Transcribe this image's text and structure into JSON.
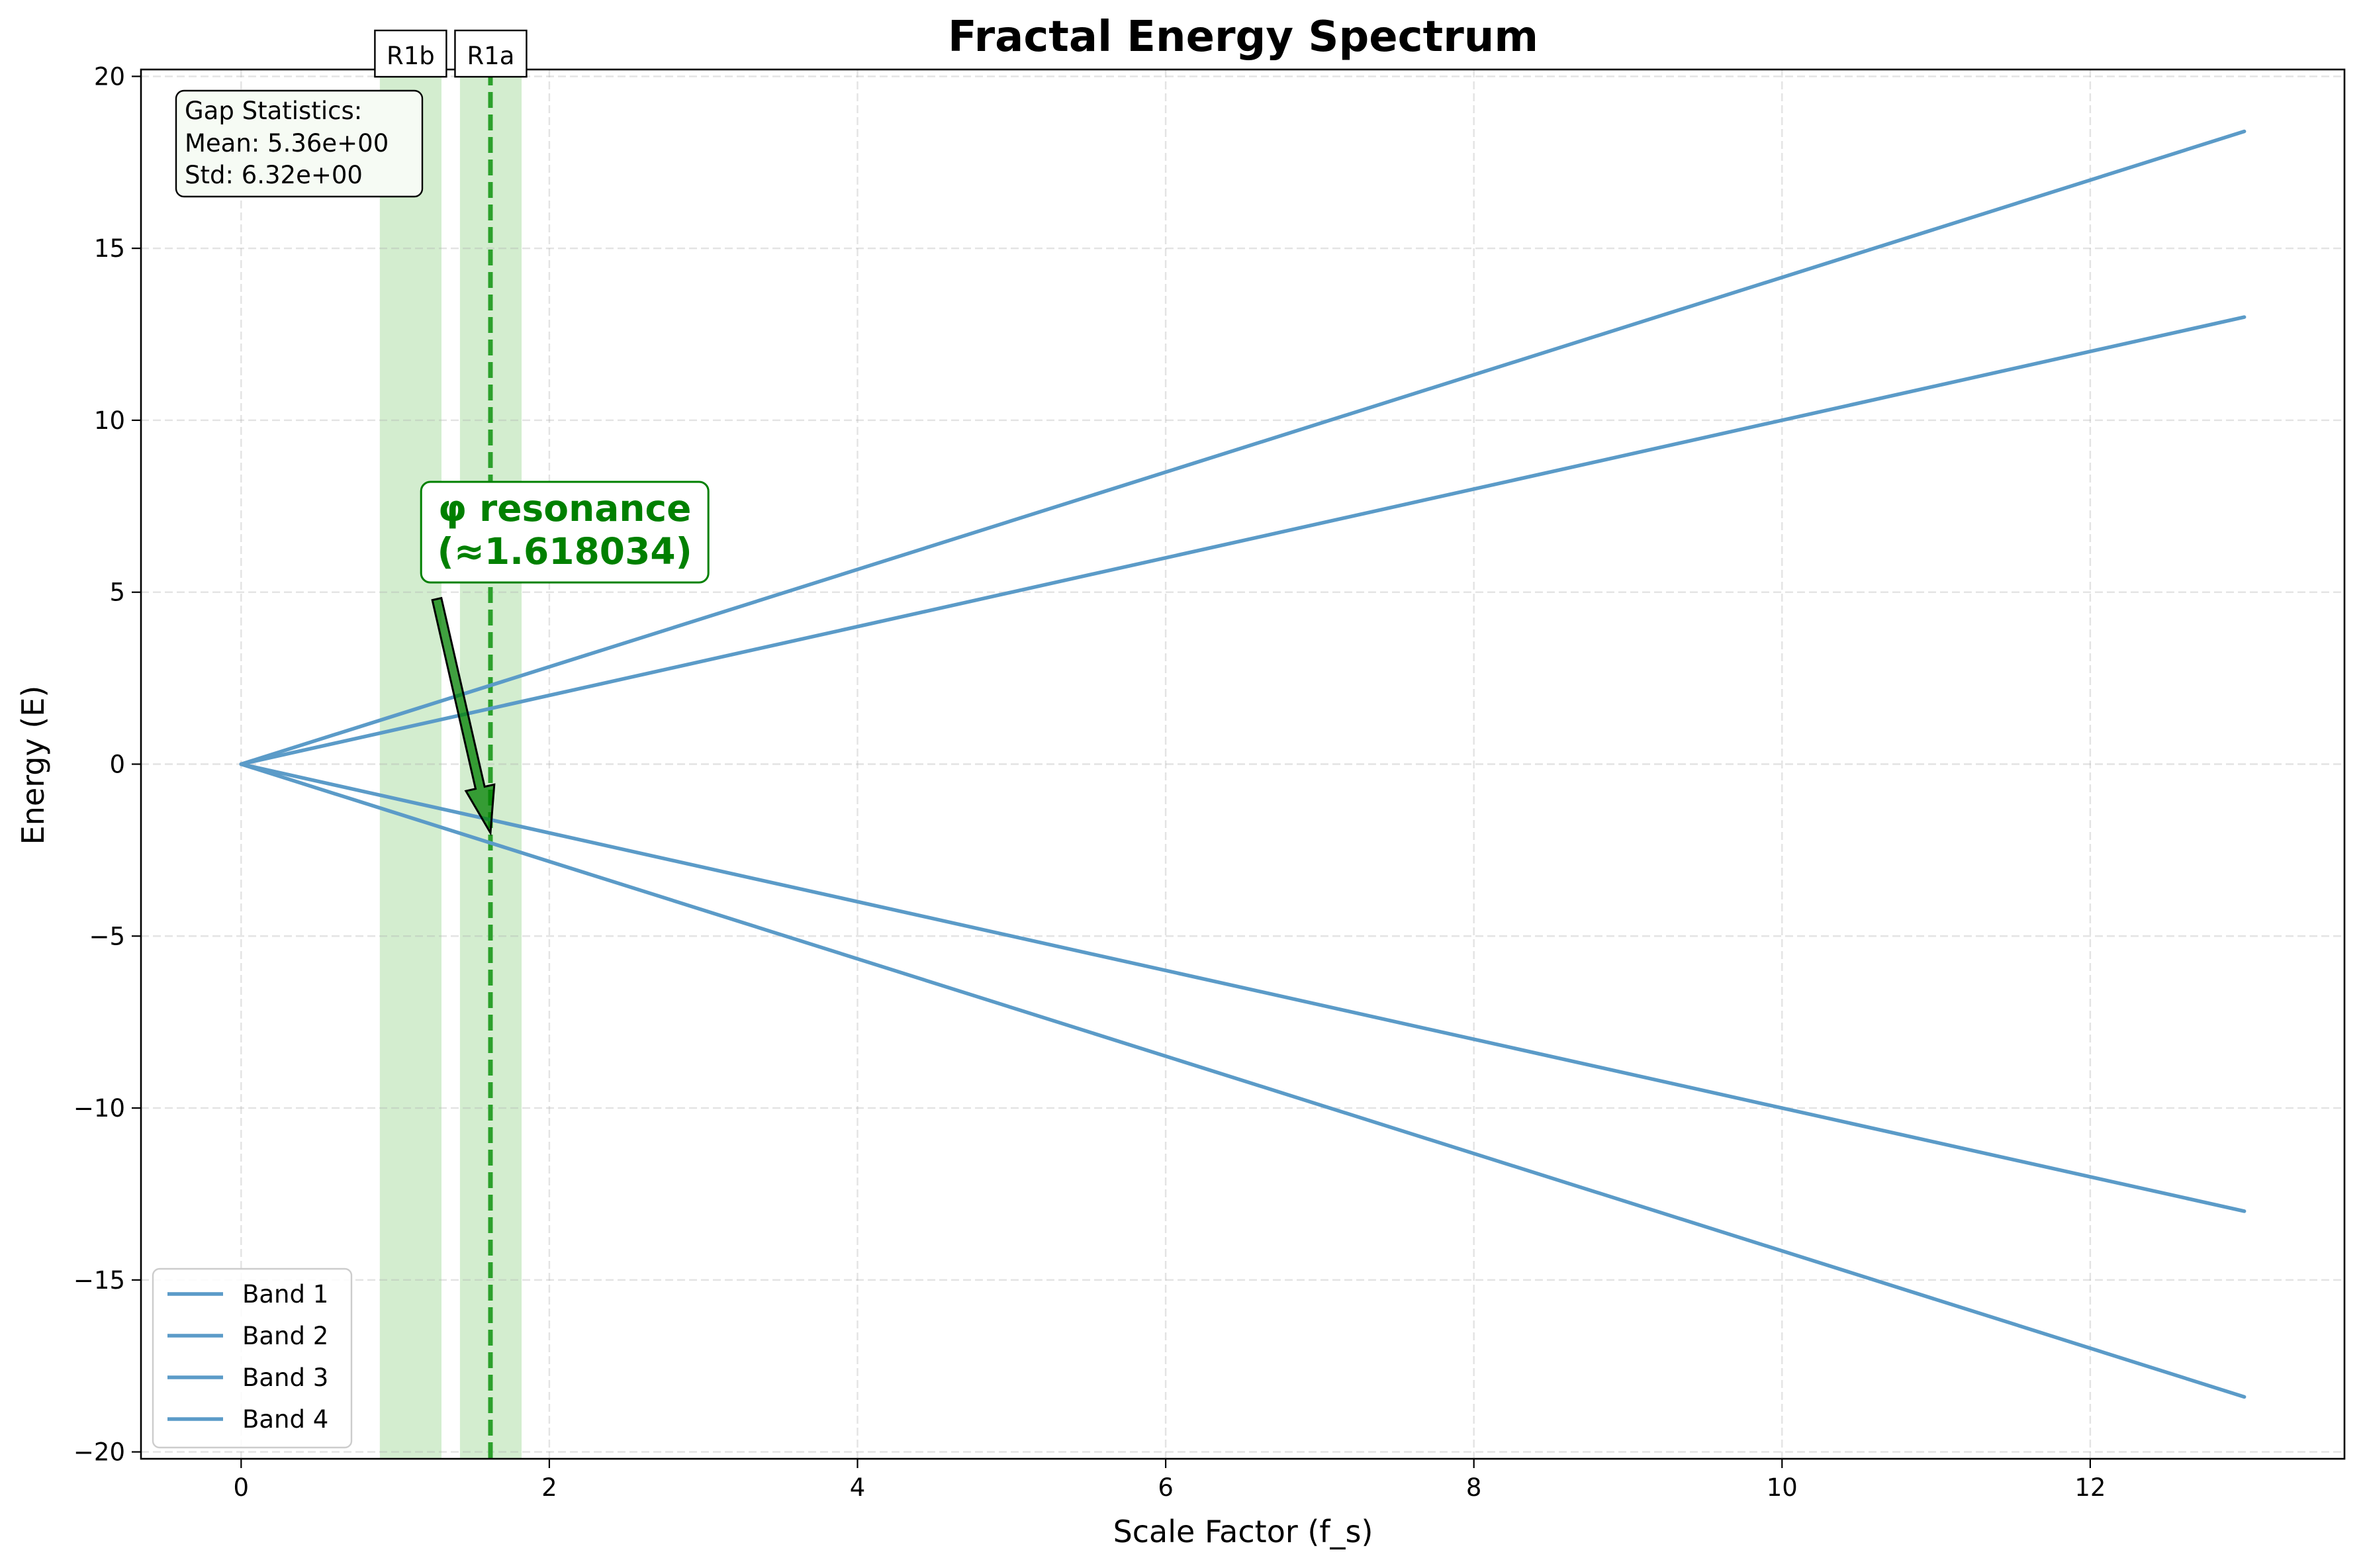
{
  "chart_data": {
    "type": "line",
    "title": "Fractal Energy Spectrum",
    "xlabel": "Scale Factor (f_s)",
    "ylabel": "Energy (E)",
    "xlim": [
      -0.65,
      13.65
    ],
    "ylim": [
      -20.2,
      20.2
    ],
    "xticks": [
      0,
      2,
      4,
      6,
      8,
      10,
      12
    ],
    "yticks": [
      -20,
      -15,
      -10,
      -5,
      0,
      5,
      10,
      15,
      20
    ],
    "xtick_labels": [
      "0",
      "2",
      "4",
      "6",
      "8",
      "10",
      "12"
    ],
    "ytick_labels": [
      "−20",
      "−15",
      "−10",
      "−5",
      "0",
      "5",
      "10",
      "15",
      "20"
    ],
    "grid": true,
    "legend_position": "lower-left",
    "series": [
      {
        "name": "Band 1",
        "x": [
          0,
          13
        ],
        "y": [
          0,
          18.4
        ]
      },
      {
        "name": "Band 2",
        "x": [
          0,
          13
        ],
        "y": [
          0,
          13.0
        ]
      },
      {
        "name": "Band 3",
        "x": [
          0,
          13
        ],
        "y": [
          0,
          -13.0
        ]
      },
      {
        "name": "Band 4",
        "x": [
          0,
          13
        ],
        "y": [
          0,
          -18.4
        ]
      }
    ],
    "line_color": "#5b9bc8",
    "regions": [
      {
        "label": "R1b",
        "x0": 0.9,
        "x1": 1.3,
        "color": "#a8dba0"
      },
      {
        "label": "R1a",
        "x0": 1.42,
        "x1": 1.82,
        "color": "#a8dba0"
      }
    ],
    "vline": {
      "x": 1.618,
      "color": "#2ca02c"
    },
    "annotation": {
      "line1": "φ resonance",
      "line2": "(≈1.618034)",
      "color": "#008000",
      "text_at": [
        2.1,
        6.6
      ],
      "arrow_from": [
        1.27,
        4.8
      ],
      "arrow_to": [
        1.618,
        -2.0
      ]
    },
    "stats_box": {
      "title": "Gap Statistics:",
      "mean": "Mean: 5.36e+00",
      "std": "Std: 6.32e+00"
    }
  }
}
